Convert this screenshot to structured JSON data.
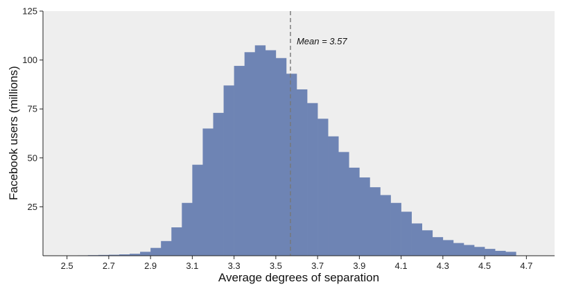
{
  "chart_data": {
    "type": "bar",
    "title": "",
    "xlabel": "Average degrees of separation",
    "ylabel": "Facebook users (millions)",
    "xlim": [
      2.385,
      4.835
    ],
    "ylim": [
      0,
      125
    ],
    "x_ticks": [
      "2.5",
      "2.7",
      "2.9",
      "3.1",
      "3.3",
      "3.5",
      "3.7",
      "3.9",
      "4.1",
      "4.3",
      "4.5",
      "4.7"
    ],
    "y_ticks": [
      "25",
      "50",
      "75",
      "100",
      "125"
    ],
    "bin_width": 0.05,
    "bin_starts": [
      2.5,
      2.55,
      2.6,
      2.65,
      2.7,
      2.75,
      2.8,
      2.85,
      2.9,
      2.95,
      3.0,
      3.05,
      3.1,
      3.15,
      3.2,
      3.25,
      3.3,
      3.35,
      3.4,
      3.45,
      3.5,
      3.55,
      3.6,
      3.65,
      3.7,
      3.75,
      3.8,
      3.85,
      3.9,
      3.95,
      4.0,
      4.05,
      4.1,
      4.15,
      4.2,
      4.25,
      4.3,
      4.35,
      4.4,
      4.45,
      4.5,
      4.55,
      4.6
    ],
    "values": [
      0.1,
      0.2,
      0.3,
      0.4,
      0.5,
      0.7,
      1.0,
      2.0,
      4.0,
      7.5,
      14.5,
      27,
      46.5,
      65,
      73,
      87,
      97,
      104,
      107.5,
      105,
      101,
      93,
      85,
      78,
      70,
      61,
      53,
      45,
      40,
      35,
      31,
      27,
      22.5,
      16.5,
      13,
      9.5,
      8,
      6.5,
      5.5,
      4.5,
      3.5,
      2.5,
      2.0
    ],
    "color": "#6e84b4",
    "background": "#eeeeee",
    "mean_value": 3.57,
    "mean_label": "Mean = 3.57",
    "grid": false
  }
}
